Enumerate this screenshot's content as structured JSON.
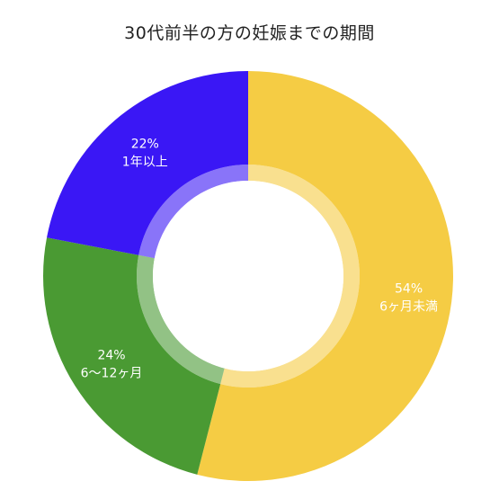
{
  "title": "30代前半の方の妊娠までの期間",
  "chart_data": {
    "type": "pie",
    "title": "30代前半の方の妊娠までの期間",
    "donut": true,
    "start": "12 o'clock, clockwise",
    "slices": [
      {
        "label": "6ヶ月未満",
        "percent_label": "54%",
        "value": 54,
        "color": "#F5CC44"
      },
      {
        "label": "6〜12ヶ月",
        "percent_label": "24%",
        "value": 24,
        "color": "#4A9A33"
      },
      {
        "label": "1年以上",
        "percent_label": "22%",
        "value": 22,
        "color": "#3A17F5"
      }
    ]
  }
}
